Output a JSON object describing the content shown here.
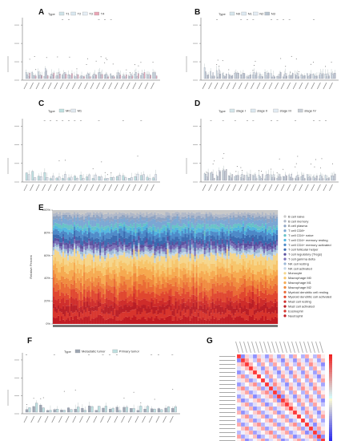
{
  "figure": {
    "panels": {
      "A": {
        "label": "A",
        "legend_title": "Type",
        "legend": [
          "T1",
          "T2",
          "T3",
          "T4"
        ],
        "colors": [
          "#cfe3e8",
          "#d9e8f0",
          "#e6eef5",
          "#e9a5b5"
        ]
      },
      "B": {
        "label": "B",
        "legend_title": "Type",
        "legend": [
          "N0",
          "N1",
          "N2",
          "N3"
        ],
        "colors": [
          "#d6e6ec",
          "#dde9f1",
          "#e3ecf4",
          "#b8c4cf"
        ]
      },
      "C": {
        "label": "C",
        "legend_title": "Type",
        "legend": [
          "M0",
          "M1"
        ],
        "colors": [
          "#bfe0e0",
          "#dfe8ef"
        ]
      },
      "D": {
        "label": "D",
        "legend_title": "Type",
        "legend": [
          "stage I",
          "stage II",
          "stage III",
          "stage IV"
        ],
        "colors": [
          "#d4e6ea",
          "#dbe8f0",
          "#e2ebf3",
          "#c9cfd6"
        ]
      },
      "E": {
        "label": "E",
        "ylabel": "Relative Percent",
        "yticks": [
          "100%",
          "80%",
          "60%",
          "40%",
          "20%",
          "0%"
        ],
        "legend": [
          "B cell naive",
          "B cell memory",
          "B cell plasma",
          "T cell CD8+",
          "T cell CD4+ naive",
          "T cell CD4+ memory resting",
          "T cell CD4+ memory activated",
          "T cell follicular helper",
          "T cell regulatory (Tregs)",
          "T cell gamma delta",
          "NK cell resting",
          "NK cell activated",
          "Monocyte",
          "Macrophage M0",
          "Macrophage M1",
          "Macrophage M2",
          "Myeloid dendritic cell resting",
          "Myeloid dendritic cell activated",
          "Mast cell resting",
          "Mast cell activated",
          "Eosinophil",
          "Neutrophil"
        ],
        "legend_colors": [
          "#c8c8c8",
          "#b0b8c8",
          "#8ea3c2",
          "#7aa7d4",
          "#67c2c7",
          "#52b6e0",
          "#4c89c8",
          "#3a6bb0",
          "#5a4f9e",
          "#7a6fb8",
          "#9bb8d6",
          "#c3d6e6",
          "#f5d58a",
          "#f7c56b",
          "#f6a94f",
          "#f08a3e",
          "#ea6a35",
          "#e0462f",
          "#cf2c2a",
          "#b81e26",
          "#d8342c",
          "#c01a22"
        ]
      },
      "F": {
        "label": "F",
        "legend_title": "Type",
        "legend": [
          "Metastatic tumor",
          "Primary tumor"
        ],
        "colors": [
          "#9ea7b3",
          "#bfe0e0"
        ]
      },
      "G": {
        "label": "G"
      }
    }
  }
}
